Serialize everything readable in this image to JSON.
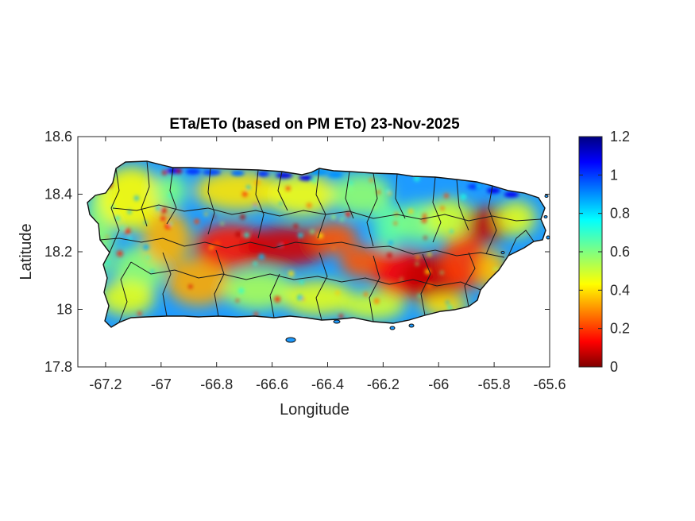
{
  "map": {
    "title": "ETa/ETo (based on PM ETo) 23-Nov-2025",
    "xlabel": "Longitude",
    "ylabel": "Latitude",
    "xlim": [
      -67.3,
      -65.6
    ],
    "ylim": [
      17.8,
      18.6
    ],
    "xticks": [
      {
        "value": -67.2,
        "label": "-67.2"
      },
      {
        "value": -67.0,
        "label": "-67"
      },
      {
        "value": -66.8,
        "label": "-66.8"
      },
      {
        "value": -66.6,
        "label": "-66.6"
      },
      {
        "value": -66.4,
        "label": "-66.4"
      },
      {
        "value": -66.2,
        "label": "-66.2"
      },
      {
        "value": -66.0,
        "label": "-66"
      },
      {
        "value": -65.8,
        "label": "-65.8"
      },
      {
        "value": -65.6,
        "label": "-65.6"
      }
    ],
    "yticks": [
      {
        "value": 17.8,
        "label": "17.8"
      },
      {
        "value": 18.0,
        "label": "18"
      },
      {
        "value": 18.2,
        "label": "18.2"
      },
      {
        "value": 18.4,
        "label": "18.4"
      },
      {
        "value": 18.6,
        "label": "18.6"
      }
    ],
    "colormap": "jet",
    "colorbar": {
      "min": 0,
      "max": 1.2,
      "ticks": [
        {
          "value": 0,
          "label": "0"
        },
        {
          "value": 0.2,
          "label": "0.2"
        },
        {
          "value": 0.4,
          "label": "0.4"
        },
        {
          "value": 0.6,
          "label": "0.6"
        },
        {
          "value": 0.8,
          "label": "0.8"
        },
        {
          "value": 1.0,
          "label": "1"
        },
        {
          "value": 1.2,
          "label": "1.2"
        }
      ]
    },
    "grid": false,
    "colors": {
      "background": "#ffffff",
      "axes": "#262626",
      "boundary": "#1a1a1a"
    }
  }
}
